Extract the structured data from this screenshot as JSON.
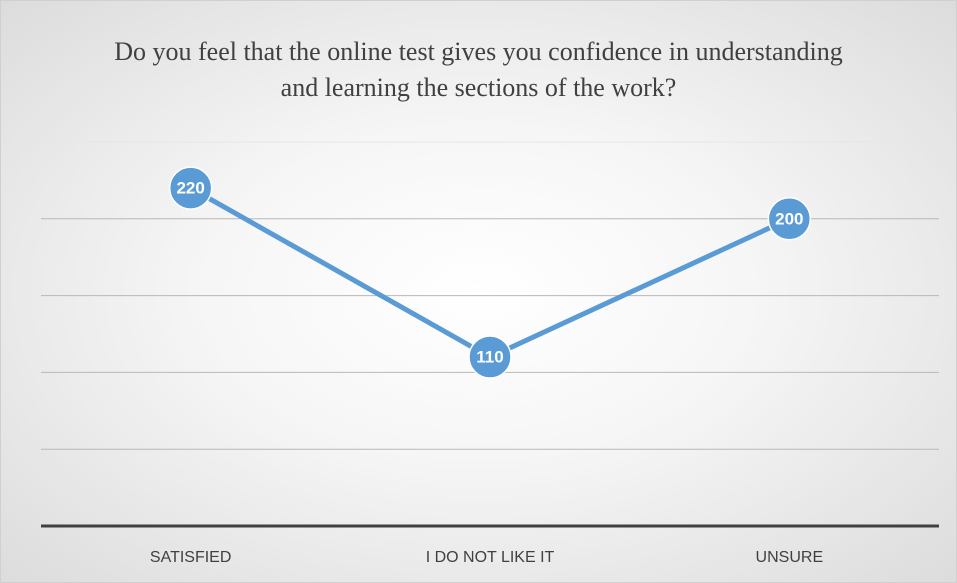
{
  "chart_data": {
    "type": "line",
    "title": "Do you feel that the online test gives you confidence in understanding and learning the sections of the work?",
    "categories": [
      "SATISFIED",
      "I DO NOT LIKE IT",
      "UNSURE"
    ],
    "values": [
      220,
      110,
      200
    ],
    "color": "#5b9bd5",
    "ylim": [
      0,
      250
    ],
    "yticks": [
      0,
      50,
      100,
      150,
      200,
      250
    ],
    "grid": true
  }
}
